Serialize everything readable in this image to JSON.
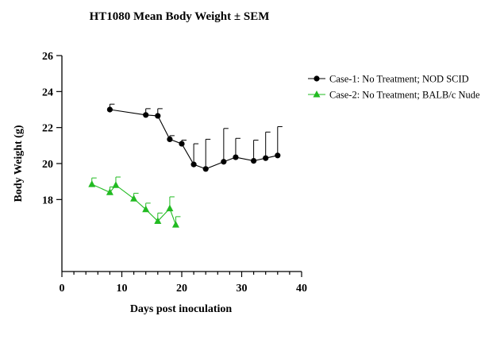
{
  "chart_data": {
    "type": "line",
    "title": "HT1080 Mean Body Weight ± SEM",
    "xlabel": "Days post inoculation",
    "ylabel": "Body Weight (g)",
    "xlim": [
      0,
      40
    ],
    "ylim": [
      14,
      26
    ],
    "x_ticks": [
      0,
      10,
      20,
      30,
      40
    ],
    "y_ticks": [
      18,
      20,
      22,
      24,
      26
    ],
    "x_tick_labels": [
      "0",
      "10",
      "20",
      "30",
      "40"
    ],
    "y_tick_labels": [
      "18",
      "20",
      "22",
      "24",
      "26"
    ],
    "x_minor_tick_step": 2,
    "grid": false,
    "legend_position": "top-right",
    "series": [
      {
        "name": "Case-1: No Treatment; NOD SCID",
        "color": "#000000",
        "marker": "circle",
        "x": [
          8,
          14,
          16,
          18,
          20,
          22,
          24,
          27,
          29,
          32,
          34,
          36
        ],
        "y": [
          23.0,
          22.7,
          22.65,
          21.35,
          21.1,
          19.95,
          19.7,
          20.1,
          20.35,
          20.15,
          20.3,
          20.45
        ],
        "sem": [
          0.3,
          0.35,
          0.4,
          0.2,
          0.2,
          1.15,
          1.65,
          1.85,
          1.05,
          1.15,
          1.45,
          1.6
        ]
      },
      {
        "name": "Case-2: No Treatment; BALB/c Nude",
        "color": "#22bb22",
        "marker": "triangle",
        "x": [
          5,
          8,
          9,
          12,
          14,
          16,
          18,
          19
        ],
        "y": [
          18.85,
          18.4,
          18.8,
          18.05,
          17.45,
          16.8,
          17.5,
          16.6
        ],
        "sem": [
          0.35,
          0.3,
          0.45,
          0.3,
          0.35,
          0.45,
          0.65,
          0.45
        ]
      }
    ]
  }
}
